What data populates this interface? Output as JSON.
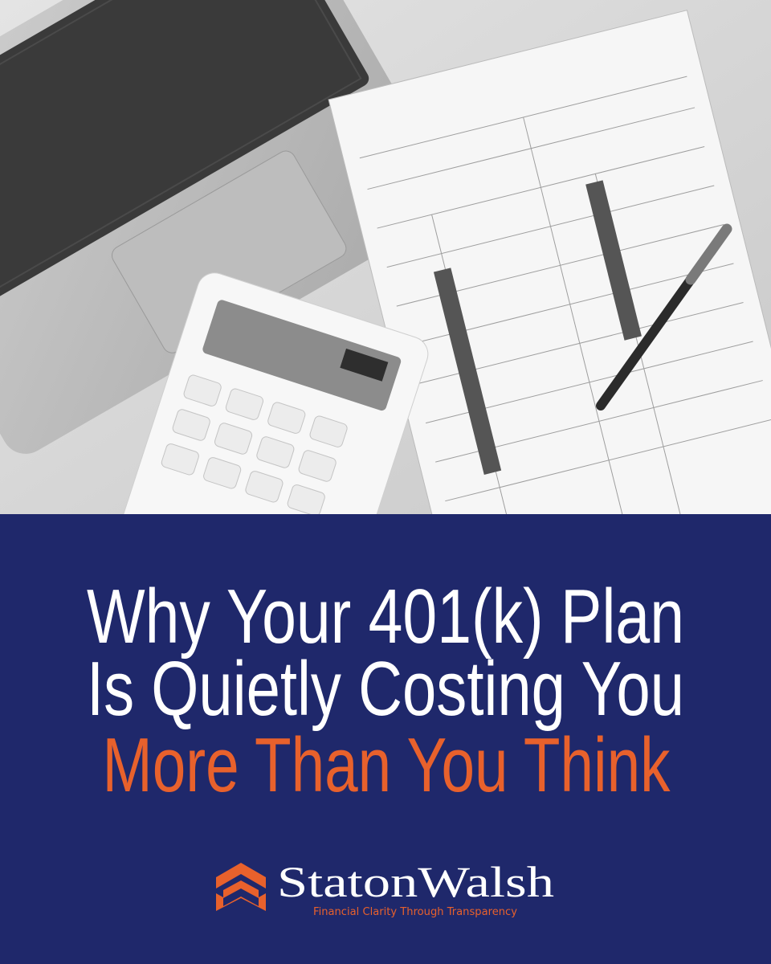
{
  "headline": {
    "lines": [
      "Why Your 401(k) Plan",
      "Is Quietly Costing You"
    ],
    "highlight": "More Than You Think"
  },
  "brand": {
    "name": "StatonWalsh",
    "tagline": "Financial Clarity Through Transparency"
  }
}
